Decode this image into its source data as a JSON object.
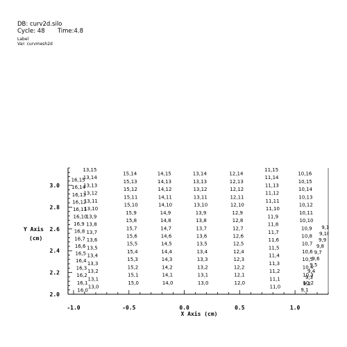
{
  "header": {
    "db": "DB: curv2d.silo",
    "cycle_label": "Cycle: 48",
    "time_label": "Time:4.8",
    "plot_kind": "Label",
    "var": "Var: curvmesh2d"
  },
  "chart_data": {
    "type": "table",
    "xlabel": "X Axis (cm)",
    "ylabel_line1": "Y Axis",
    "ylabel_line2": "(cm)",
    "xlim": [
      -1.05,
      1.3
    ],
    "ylim": [
      2.0,
      3.16
    ],
    "xticks": [
      {
        "value": -1.0,
        "label": "-1.0"
      },
      {
        "value": -0.5,
        "label": "-0.5"
      },
      {
        "value": 0.0,
        "label": "0.0"
      },
      {
        "value": 0.5,
        "label": "0.5"
      },
      {
        "value": 1.0,
        "label": "1.0"
      }
    ],
    "yticks": [
      {
        "value": 2.0,
        "label": "2.0"
      },
      {
        "value": 2.2,
        "label": "2.2"
      },
      {
        "value": 2.4,
        "label": "2.4"
      },
      {
        "value": 2.6,
        "label": "2.6"
      },
      {
        "value": 2.8,
        "label": "2.8"
      },
      {
        "value": 3.0,
        "label": "3.0"
      }
    ],
    "columns": [
      {
        "x": -0.82,
        "labels": [
          "13,15",
          "13,14",
          "13,13",
          "13,12",
          "13,11",
          "13,10",
          "13,9",
          "13,8",
          "13,7",
          "13,6",
          "13,5",
          "13,4",
          "13,3",
          "13,2",
          "13,1",
          "13,0"
        ]
      },
      {
        "x": -0.46,
        "labels": [
          "15,14",
          "15,13",
          "15,12",
          "15,11",
          "15,10",
          "15,9",
          "15,8",
          "15,7",
          "15,6",
          "15,5",
          "15,4",
          "15,3",
          "15,2",
          "15,1",
          "15,0"
        ]
      },
      {
        "x": -0.15,
        "labels": [
          "14,15",
          "14,13",
          "14,12",
          "14,11",
          "14,10",
          "14,9",
          "14,8",
          "14,7",
          "14,6",
          "14,5",
          "14,4",
          "14,3",
          "14,2",
          "14,1",
          "14,0"
        ]
      },
      {
        "x": 0.17,
        "labels": [
          "13,14",
          "13,13",
          "13,12",
          "13,11",
          "13,10",
          "13,9",
          "13,8",
          "13,7",
          "13,6",
          "13,5",
          "13,4",
          "13,3",
          "13,2",
          "13,1",
          "13,0"
        ]
      },
      {
        "x": 0.5,
        "labels": [
          "12,14",
          "12,13",
          "12,12",
          "12,11",
          "12,10",
          "12,9",
          "12,8",
          "12,7",
          "12,6",
          "12,5",
          "12,4",
          "12,3",
          "12,2",
          "12,1",
          "12,0"
        ]
      },
      {
        "x": 0.82,
        "labels": [
          "11,15",
          "11,14",
          "11,13",
          "11,12",
          "11,11",
          "11,10",
          "11,9",
          "11,8",
          "11,7",
          "11,6",
          "11,5",
          "11,4",
          "11,3",
          "11,2",
          "11,1",
          "11,0"
        ]
      },
      {
        "x": 1.12,
        "labels": [
          "10,16",
          "10,15",
          "10,14",
          "10,13",
          "10,12",
          "10,11",
          "10,10",
          "10,9",
          "10,8",
          "10,7",
          "10,6",
          "10,5",
          "10,4",
          "10,3",
          "10,2"
        ]
      }
    ],
    "left_column": {
      "x": -1.0,
      "labels": [
        "",
        "16,15",
        "16,14",
        "16,13",
        "16,12",
        "16,11",
        "16,10",
        "16,9",
        "16,8",
        "16,7",
        "16,6",
        "16,5",
        "16,4",
        "16,3",
        "16,2",
        "16,1",
        "16,0"
      ]
    },
    "right_column": {
      "labels": [
        "9,11",
        "9,10",
        "9,9",
        "9,8",
        "9,7",
        "9,6",
        "9,5",
        "9,4",
        "9,3",
        "9,2",
        "9,1"
      ]
    }
  }
}
